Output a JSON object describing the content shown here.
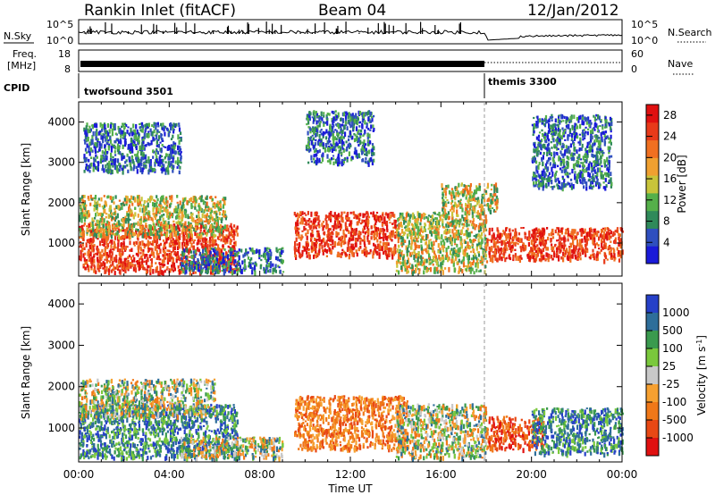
{
  "header": {
    "station": "Rankin Inlet (fitACF)",
    "beam": "Beam 04",
    "date": "12/Jan/2012"
  },
  "noise_panel": {
    "left_label": "N.Sky",
    "right_label": "N.Search",
    "left_ticks": [
      "10^5",
      "10^0"
    ],
    "right_ticks": [
      "10^5",
      "10^0"
    ]
  },
  "freq_panel": {
    "left_label_line1": "Freq.",
    "left_label_line2": "[MHz]",
    "left_ticks": [
      "18",
      "8"
    ],
    "right_label": "Nave",
    "right_ticks": [
      "60",
      "0"
    ]
  },
  "cpid_panel": {
    "label": "CPID",
    "programs": [
      "twofsound 3501",
      "themis 3300"
    ],
    "switch_hour": 18
  },
  "colors": {
    "power_scale": [
      "#1a1ad9",
      "#2f4fbf",
      "#2f8a5a",
      "#55b04a",
      "#c8c43a",
      "#f0a030",
      "#f07020",
      "#e83a1a",
      "#e01010"
    ],
    "velocity_scale": [
      "#2640c8",
      "#2e6e9a",
      "#3a9a4e",
      "#7ac83c",
      "#c8c8c8",
      "#f6a030",
      "#f07818",
      "#e84814",
      "#e01010"
    ]
  },
  "chart_data": [
    {
      "type": "heatmap",
      "title": "Power",
      "xlabel": "Time UT",
      "ylabel": "Slant Range [km]",
      "x_ticks": [
        "00:00",
        "04:00",
        "08:00",
        "12:00",
        "16:00",
        "20:00",
        "00:00"
      ],
      "xlim_hours": [
        0,
        24
      ],
      "y_ticks": [
        1000,
        2000,
        3000,
        4000
      ],
      "ylim_km": [
        180,
        4500
      ],
      "colorbar": {
        "label": "Power [dB]",
        "ticks": [
          4,
          8,
          12,
          16,
          20,
          24,
          28
        ],
        "range": [
          0,
          30
        ]
      },
      "echo_regions": [
        {
          "t0": 0.0,
          "t1": 7.0,
          "r0": 300,
          "r1": 1500,
          "level": "high"
        },
        {
          "t0": 0.0,
          "t1": 6.5,
          "r0": 1200,
          "r1": 2200,
          "level": "medium"
        },
        {
          "t0": 0.2,
          "t1": 4.5,
          "r0": 2800,
          "r1": 4000,
          "level": "low"
        },
        {
          "t0": 4.5,
          "t1": 9.0,
          "r0": 300,
          "r1": 900,
          "level": "low"
        },
        {
          "t0": 9.5,
          "t1": 14.0,
          "r0": 700,
          "r1": 1800,
          "level": "high"
        },
        {
          "t0": 10.0,
          "t1": 13.0,
          "r0": 3000,
          "r1": 4300,
          "level": "low"
        },
        {
          "t0": 14.0,
          "t1": 18.0,
          "r0": 300,
          "r1": 1800,
          "level": "medium"
        },
        {
          "t0": 16.0,
          "t1": 18.5,
          "r0": 1800,
          "r1": 2500,
          "level": "medium"
        },
        {
          "t0": 18.0,
          "t1": 20.5,
          "r0": 600,
          "r1": 1400,
          "level": "high"
        },
        {
          "t0": 20.0,
          "t1": 24.0,
          "r0": 600,
          "r1": 1400,
          "level": "high"
        },
        {
          "t0": 20.0,
          "t1": 23.5,
          "r0": 2400,
          "r1": 4200,
          "level": "low"
        }
      ]
    },
    {
      "type": "heatmap",
      "title": "Velocity",
      "xlabel": "Time UT",
      "ylabel": "Slant Range [km]",
      "x_ticks": [
        "00:00",
        "04:00",
        "08:00",
        "12:00",
        "16:00",
        "20:00",
        "00:00"
      ],
      "xlim_hours": [
        0,
        24
      ],
      "y_ticks": [
        1000,
        2000,
        3000,
        4000
      ],
      "ylim_km": [
        180,
        4500
      ],
      "colorbar": {
        "label": "Velocity [m s^-1]",
        "ticks": [
          "1000",
          "500",
          "100",
          "25",
          "-25",
          "-100",
          "-500",
          "-1000"
        ]
      },
      "echo_regions": [
        {
          "t0": 0.0,
          "t1": 7.0,
          "r0": 300,
          "r1": 1600,
          "level": "positive"
        },
        {
          "t0": 0.0,
          "t1": 6.0,
          "r0": 1300,
          "r1": 2200,
          "level": "mixed"
        },
        {
          "t0": 4.5,
          "t1": 9.0,
          "r0": 300,
          "r1": 800,
          "level": "mixed"
        },
        {
          "t0": 9.5,
          "t1": 14.5,
          "r0": 500,
          "r1": 1800,
          "level": "negative"
        },
        {
          "t0": 14.0,
          "t1": 18.0,
          "r0": 300,
          "r1": 1600,
          "level": "mixed"
        },
        {
          "t0": 18.0,
          "t1": 20.5,
          "r0": 500,
          "r1": 1300,
          "level": "strong_negative"
        },
        {
          "t0": 20.0,
          "t1": 24.0,
          "r0": 400,
          "r1": 1500,
          "level": "positive"
        }
      ]
    }
  ]
}
